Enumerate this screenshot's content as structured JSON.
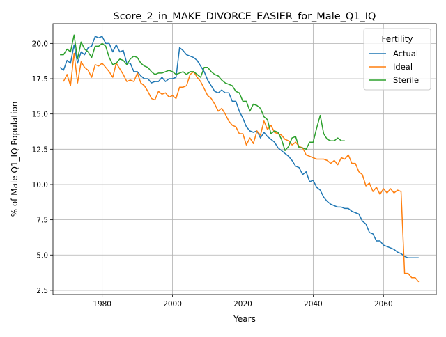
{
  "chart_data": {
    "type": "line",
    "title": "Score_2_in_MAKE_DIVORCE_EASIER_for_Male_Q1_IQ",
    "xlabel": "Years",
    "ylabel": "% of Male Q1_IQ Population",
    "xlim": [
      1966,
      2075
    ],
    "ylim": [
      2.2,
      21.4
    ],
    "xticks": [
      1980,
      2000,
      2020,
      2040,
      2060
    ],
    "yticks": [
      2.5,
      5.0,
      7.5,
      10.0,
      12.5,
      15.0,
      17.5,
      20.0
    ],
    "grid": true,
    "legend": {
      "title": "Fertility",
      "position": "top-right"
    },
    "series": [
      {
        "name": "Actual",
        "color": "#1f77b4",
        "x": [
          1968,
          1969,
          1970,
          1971,
          1972,
          1973,
          1974,
          1975,
          1976,
          1977,
          1978,
          1979,
          1980,
          1981,
          1982,
          1983,
          1984,
          1985,
          1986,
          1987,
          1988,
          1989,
          1990,
          1991,
          1992,
          1993,
          1994,
          1995,
          1996,
          1997,
          1998,
          1999,
          2000,
          2001,
          2002,
          2003,
          2004,
          2005,
          2006,
          2007,
          2008,
          2009,
          2010,
          2011,
          2012,
          2013,
          2014,
          2015,
          2016,
          2017,
          2018,
          2019,
          2020,
          2021,
          2022,
          2023,
          2024,
          2025,
          2026,
          2027,
          2028,
          2029,
          2030,
          2031,
          2032,
          2033,
          2034,
          2035,
          2036,
          2037,
          2038,
          2039,
          2040,
          2041,
          2042,
          2043,
          2044,
          2045,
          2046,
          2047,
          2048,
          2049,
          2050,
          2051,
          2052,
          2053,
          2054,
          2055,
          2056,
          2057,
          2058,
          2059,
          2060,
          2061,
          2062,
          2063,
          2064,
          2065,
          2066,
          2067,
          2068,
          2069,
          2070
        ],
        "values": [
          18.3,
          18.1,
          18.8,
          18.6,
          19.9,
          18.6,
          19.4,
          19.2,
          19.7,
          19.8,
          20.5,
          20.4,
          20.5,
          20.0,
          20.0,
          19.4,
          19.9,
          19.4,
          19.5,
          18.6,
          18.6,
          18.0,
          18.0,
          17.7,
          17.5,
          17.5,
          17.2,
          17.3,
          17.3,
          17.6,
          17.3,
          17.5,
          17.5,
          17.6,
          19.7,
          19.5,
          19.2,
          19.1,
          19.0,
          18.8,
          18.4,
          18.0,
          17.4,
          17.0,
          16.6,
          16.5,
          16.7,
          16.5,
          16.5,
          15.9,
          15.9,
          15.2,
          14.7,
          14.1,
          13.8,
          13.7,
          13.8,
          13.3,
          13.7,
          13.4,
          13.2,
          13.0,
          12.6,
          12.4,
          12.2,
          12.0,
          11.7,
          11.3,
          11.2,
          10.7,
          10.9,
          10.2,
          10.3,
          9.8,
          9.6,
          9.1,
          8.8,
          8.6,
          8.5,
          8.4,
          8.4,
          8.3,
          8.3,
          8.1,
          8.0,
          7.9,
          7.4,
          7.2,
          6.6,
          6.5,
          6.0,
          6.0,
          5.7,
          5.6,
          5.5,
          5.4,
          5.2,
          5.1,
          4.9,
          4.8,
          4.8,
          4.8,
          4.8
        ]
      },
      {
        "name": "Ideal",
        "color": "#ff7f0e",
        "x": [
          1969,
          1970,
          1971,
          1972,
          1973,
          1974,
          1975,
          1976,
          1977,
          1978,
          1979,
          1980,
          1981,
          1982,
          1983,
          1984,
          1985,
          1986,
          1987,
          1988,
          1989,
          1990,
          1991,
          1992,
          1993,
          1994,
          1995,
          1996,
          1997,
          1998,
          1999,
          2000,
          2001,
          2002,
          2003,
          2004,
          2005,
          2006,
          2007,
          2008,
          2009,
          2010,
          2011,
          2012,
          2013,
          2014,
          2015,
          2016,
          2017,
          2018,
          2019,
          2020,
          2021,
          2022,
          2023,
          2024,
          2025,
          2026,
          2027,
          2028,
          2029,
          2030,
          2031,
          2032,
          2033,
          2034,
          2035,
          2036,
          2037,
          2038,
          2039,
          2040,
          2041,
          2042,
          2043,
          2044,
          2045,
          2046,
          2047,
          2048,
          2049,
          2050,
          2051,
          2052,
          2053,
          2054,
          2055,
          2056,
          2057,
          2058,
          2059,
          2060,
          2061,
          2062,
          2063,
          2064,
          2065,
          2066,
          2067,
          2068,
          2069,
          2070
        ],
        "values": [
          17.3,
          17.8,
          17.0,
          19.3,
          17.2,
          18.7,
          18.3,
          18.1,
          17.6,
          18.5,
          18.4,
          18.6,
          18.3,
          18.0,
          17.6,
          18.6,
          18.2,
          17.8,
          17.3,
          17.4,
          17.3,
          17.9,
          17.2,
          17.0,
          16.6,
          16.1,
          16.0,
          16.6,
          16.4,
          16.5,
          16.2,
          16.3,
          16.1,
          16.9,
          16.9,
          17.0,
          17.8,
          18.0,
          17.6,
          17.3,
          16.8,
          16.3,
          16.1,
          15.7,
          15.2,
          15.4,
          15.0,
          14.5,
          14.2,
          14.1,
          13.6,
          13.6,
          12.8,
          13.3,
          12.9,
          13.8,
          13.5,
          14.5,
          13.9,
          14.2,
          13.7,
          13.6,
          13.5,
          13.2,
          13.1,
          12.8,
          13.0,
          12.7,
          12.6,
          12.1,
          12.0,
          11.9,
          11.8,
          11.8,
          11.8,
          11.7,
          11.5,
          11.7,
          11.4,
          11.9,
          11.8,
          12.1,
          11.5,
          11.5,
          10.9,
          10.7,
          9.9,
          10.1,
          9.5,
          9.8,
          9.3,
          9.7,
          9.4,
          9.7,
          9.4,
          9.6,
          9.5,
          3.7,
          3.7,
          3.4,
          3.4,
          3.1
        ]
      },
      {
        "name": "Sterile",
        "color": "#2ca02c",
        "x": [
          1968,
          1969,
          1970,
          1971,
          1972,
          1973,
          1974,
          1975,
          1976,
          1977,
          1978,
          1979,
          1980,
          1981,
          1982,
          1983,
          1984,
          1985,
          1986,
          1987,
          1988,
          1989,
          1990,
          1991,
          1992,
          1993,
          1994,
          1995,
          1996,
          1997,
          1998,
          1999,
          2000,
          2001,
          2002,
          2003,
          2004,
          2005,
          2006,
          2007,
          2008,
          2009,
          2010,
          2011,
          2012,
          2013,
          2014,
          2015,
          2016,
          2017,
          2018,
          2019,
          2020,
          2021,
          2022,
          2023,
          2024,
          2025,
          2026,
          2027,
          2028,
          2029,
          2030,
          2031,
          2032,
          2033,
          2034,
          2035,
          2036,
          2037,
          2038,
          2039,
          2040,
          2041,
          2042,
          2043,
          2044,
          2045,
          2046,
          2047,
          2048,
          2049
        ],
        "values": [
          19.2,
          19.2,
          19.6,
          19.4,
          20.6,
          18.9,
          20.1,
          19.6,
          19.4,
          19.0,
          19.8,
          19.8,
          20.0,
          19.8,
          19.0,
          18.5,
          18.6,
          18.9,
          18.8,
          18.5,
          18.9,
          19.1,
          19.0,
          18.6,
          18.4,
          18.3,
          18.0,
          17.8,
          17.9,
          17.9,
          18.0,
          18.1,
          18.0,
          17.8,
          17.9,
          18.0,
          17.8,
          18.0,
          18.0,
          17.8,
          17.6,
          18.3,
          18.3,
          18.0,
          17.8,
          17.7,
          17.4,
          17.2,
          17.1,
          17.0,
          16.6,
          16.5,
          15.9,
          15.9,
          15.2,
          15.7,
          15.6,
          15.4,
          14.8,
          14.6,
          13.6,
          13.8,
          13.7,
          13.2,
          12.4,
          12.7,
          13.3,
          13.4,
          12.6,
          12.6,
          12.5,
          13.0,
          13.0,
          14.0,
          14.9,
          13.6,
          13.2,
          13.1,
          13.1,
          13.3,
          13.1,
          13.1
        ]
      }
    ]
  }
}
